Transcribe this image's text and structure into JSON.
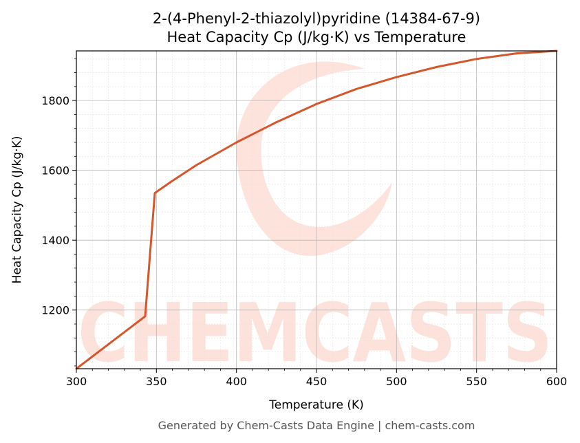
{
  "chart_data": {
    "type": "line",
    "title": "2-(4-Phenyl-2-thiazolyl)pyridine (14384-67-9)",
    "subtitle": "Heat Capacity Cp (J/kg·K) vs Temperature",
    "xlabel": "Temperature (K)",
    "ylabel": "Heat Capacity Cp (J/kg·K)",
    "xlim": [
      300,
      600
    ],
    "ylim": [
      1032,
      1942
    ],
    "xticks": [
      300,
      350,
      400,
      450,
      500,
      550,
      600
    ],
    "yticks": [
      1200,
      1400,
      1600,
      1800
    ],
    "grid": true,
    "line_color": "#d4562a",
    "series": [
      {
        "x": [
          300,
          343,
          349,
          360,
          375,
          400,
          425,
          450,
          475,
          500,
          525,
          550,
          575,
          600
        ],
        "y": [
          1032,
          1182,
          1535,
          1570,
          1615,
          1680,
          1738,
          1790,
          1833,
          1867,
          1896,
          1919,
          1935,
          1942
        ]
      }
    ]
  },
  "watermark": {
    "text": "CHEMCASTS",
    "color": "#fdd8d0"
  },
  "footer": "Generated by Chem-Casts Data Engine | chem-casts.com"
}
